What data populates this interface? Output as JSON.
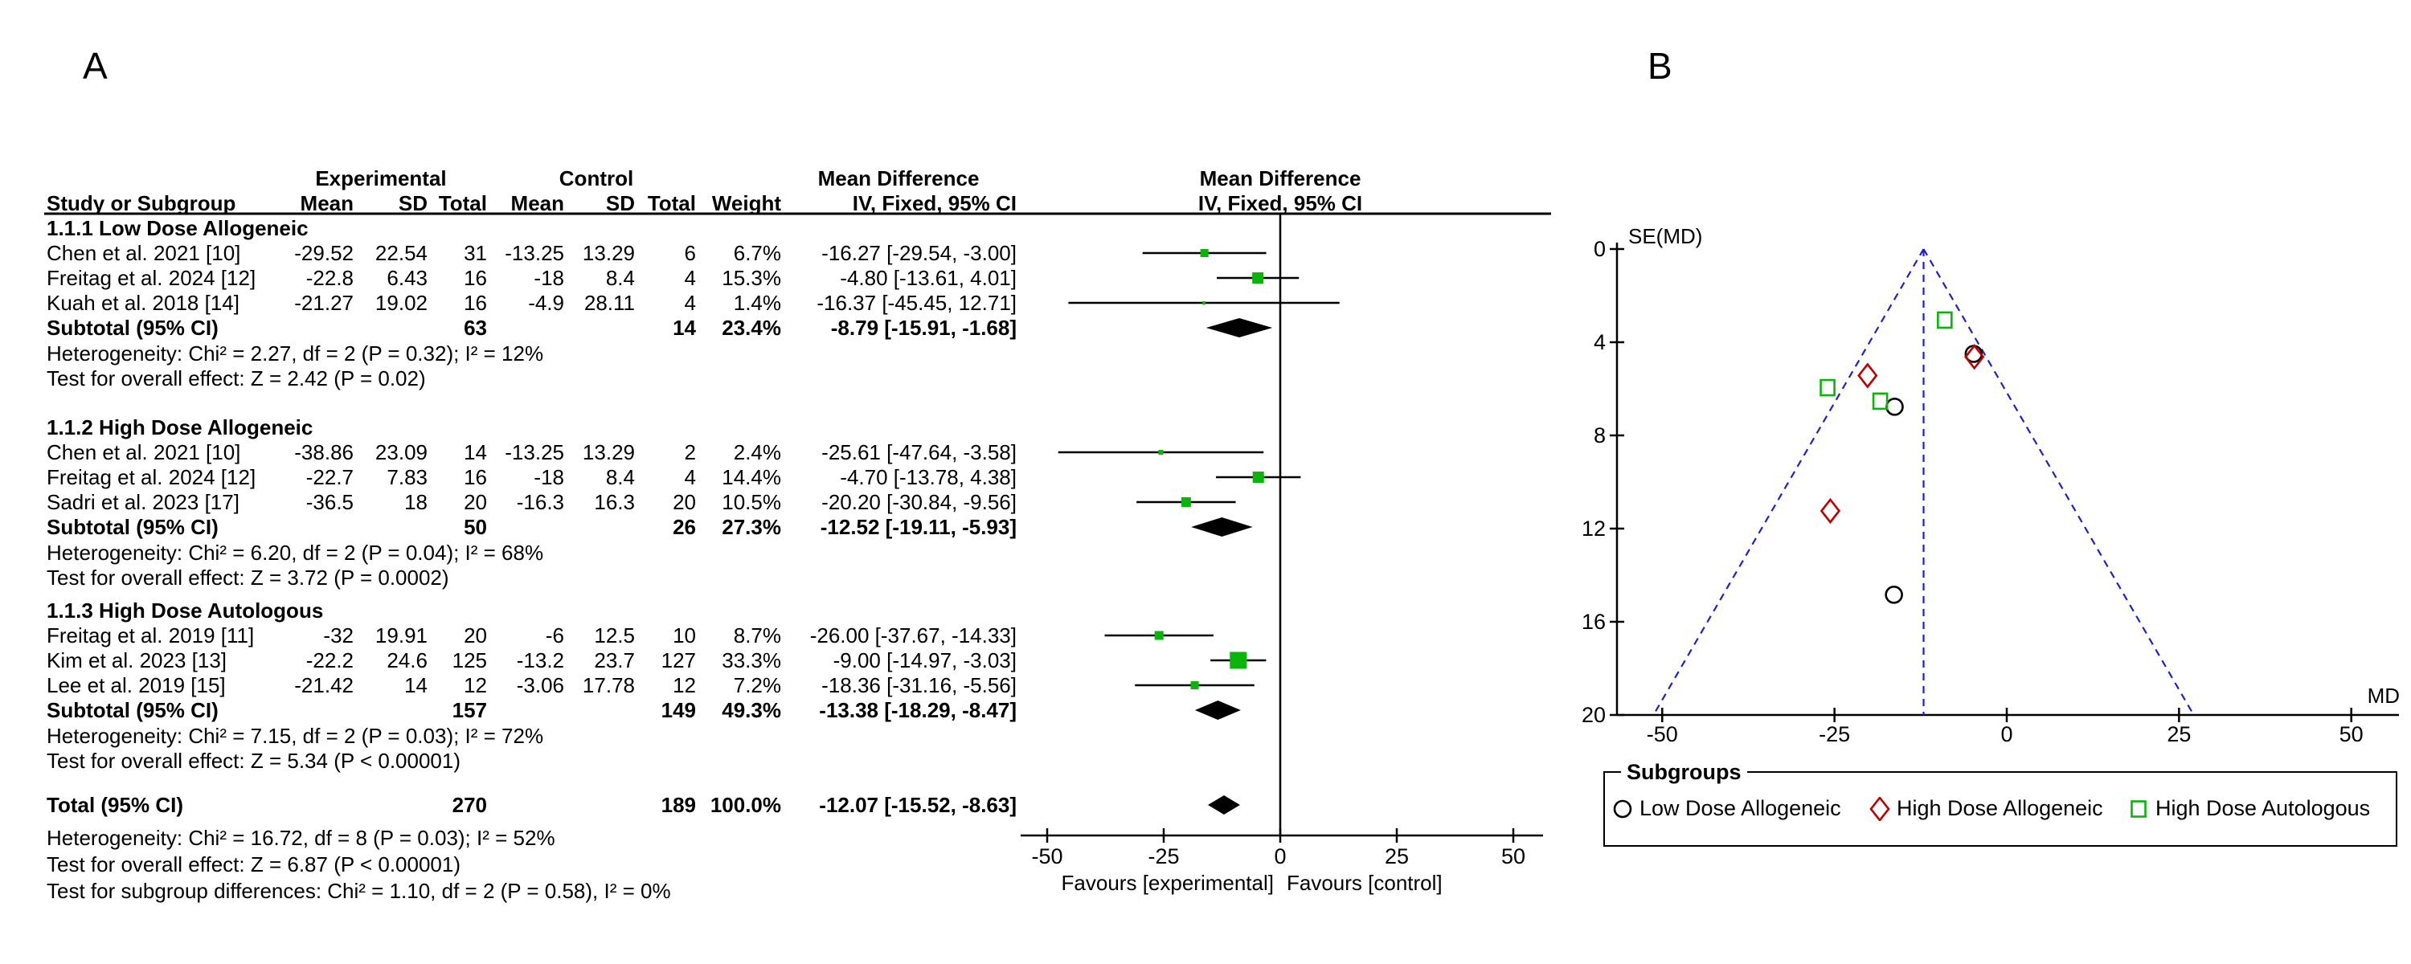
{
  "chart_data": [
    {
      "id": "forest_plot",
      "type": "forest",
      "panel_label": "A",
      "headers": {
        "study": "Study or Subgroup",
        "experimental": "Experimental",
        "control": "Control",
        "mean": "Mean",
        "sd": "SD",
        "total": "Total",
        "weight": "Weight",
        "md_text": "Mean Difference",
        "md_sub": "IV, Fixed, 95% CI",
        "md_plot": "Mean Difference",
        "md_plot_sub": "IV, Fixed, 95% CI"
      },
      "groups": [
        {
          "title": "1.1.1 Low Dose Allogeneic",
          "studies": [
            {
              "name": "Chen et al. 2021 [10]",
              "exp_mean": "-29.52",
              "exp_sd": "22.54",
              "exp_total": "31",
              "ctrl_mean": "-13.25",
              "ctrl_sd": "13.29",
              "ctrl_total": "6",
              "weight": "6.7%",
              "ci_text": "-16.27 [-29.54, -3.00]",
              "md": -16.27,
              "lo": -29.54,
              "hi": -3.0,
              "weight_pct": 6.7
            },
            {
              "name": "Freitag et al. 2024 [12]",
              "exp_mean": "-22.8",
              "exp_sd": "6.43",
              "exp_total": "16",
              "ctrl_mean": "-18",
              "ctrl_sd": "8.4",
              "ctrl_total": "4",
              "weight": "15.3%",
              "ci_text": "-4.80 [-13.61, 4.01]",
              "md": -4.8,
              "lo": -13.61,
              "hi": 4.01,
              "weight_pct": 15.3
            },
            {
              "name": "Kuah et al. 2018 [14]",
              "exp_mean": "-21.27",
              "exp_sd": "19.02",
              "exp_total": "16",
              "ctrl_mean": "-4.9",
              "ctrl_sd": "28.11",
              "ctrl_total": "4",
              "weight": "1.4%",
              "ci_text": "-16.37 [-45.45, 12.71]",
              "md": -16.37,
              "lo": -45.45,
              "hi": 12.71,
              "weight_pct": 1.4
            }
          ],
          "subtotal": {
            "label": "Subtotal (95% CI)",
            "exp_total": "63",
            "ctrl_total": "14",
            "weight": "23.4%",
            "ci_text": "-8.79 [-15.91, -1.68]",
            "md": -8.79,
            "lo": -15.91,
            "hi": -1.68
          },
          "heterogeneity": "Heterogeneity: Chi² = 2.27, df = 2 (P = 0.32); I² = 12%",
          "overall": "Test for overall effect: Z = 2.42 (P = 0.02)"
        },
        {
          "title": "1.1.2 High Dose Allogeneic",
          "studies": [
            {
              "name": "Chen et al. 2021 [10]",
              "exp_mean": "-38.86",
              "exp_sd": "23.09",
              "exp_total": "14",
              "ctrl_mean": "-13.25",
              "ctrl_sd": "13.29",
              "ctrl_total": "2",
              "weight": "2.4%",
              "ci_text": "-25.61 [-47.64, -3.58]",
              "md": -25.61,
              "lo": -47.64,
              "hi": -3.58,
              "weight_pct": 2.4
            },
            {
              "name": "Freitag et al. 2024 [12]",
              "exp_mean": "-22.7",
              "exp_sd": "7.83",
              "exp_total": "16",
              "ctrl_mean": "-18",
              "ctrl_sd": "8.4",
              "ctrl_total": "4",
              "weight": "14.4%",
              "ci_text": "-4.70 [-13.78, 4.38]",
              "md": -4.7,
              "lo": -13.78,
              "hi": 4.38,
              "weight_pct": 14.4
            },
            {
              "name": "Sadri et al. 2023 [17]",
              "exp_mean": "-36.5",
              "exp_sd": "18",
              "exp_total": "20",
              "ctrl_mean": "-16.3",
              "ctrl_sd": "16.3",
              "ctrl_total": "20",
              "weight": "10.5%",
              "ci_text": "-20.20 [-30.84, -9.56]",
              "md": -20.2,
              "lo": -30.84,
              "hi": -9.56,
              "weight_pct": 10.5
            }
          ],
          "subtotal": {
            "label": "Subtotal (95% CI)",
            "exp_total": "50",
            "ctrl_total": "26",
            "weight": "27.3%",
            "ci_text": "-12.52 [-19.11, -5.93]",
            "md": -12.52,
            "lo": -19.11,
            "hi": -5.93
          },
          "heterogeneity": "Heterogeneity: Chi² = 6.20, df = 2 (P = 0.04); I² = 68%",
          "overall": "Test for overall effect: Z = 3.72 (P = 0.0002)"
        },
        {
          "title": "1.1.3 High Dose Autologous",
          "studies": [
            {
              "name": "Freitag et al. 2019 [11]",
              "exp_mean": "-32",
              "exp_sd": "19.91",
              "exp_total": "20",
              "ctrl_mean": "-6",
              "ctrl_sd": "12.5",
              "ctrl_total": "10",
              "weight": "8.7%",
              "ci_text": "-26.00 [-37.67, -14.33]",
              "md": -26.0,
              "lo": -37.67,
              "hi": -14.33,
              "weight_pct": 8.7
            },
            {
              "name": "Kim et al. 2023 [13]",
              "exp_mean": "-22.2",
              "exp_sd": "24.6",
              "exp_total": "125",
              "ctrl_mean": "-13.2",
              "ctrl_sd": "23.7",
              "ctrl_total": "127",
              "weight": "33.3%",
              "ci_text": "-9.00 [-14.97, -3.03]",
              "md": -9.0,
              "lo": -14.97,
              "hi": -3.03,
              "weight_pct": 33.3
            },
            {
              "name": "Lee et al. 2019 [15]",
              "exp_mean": "-21.42",
              "exp_sd": "14",
              "exp_total": "12",
              "ctrl_mean": "-3.06",
              "ctrl_sd": "17.78",
              "ctrl_total": "12",
              "weight": "7.2%",
              "ci_text": "-18.36 [-31.16, -5.56]",
              "md": -18.36,
              "lo": -31.16,
              "hi": -5.56,
              "weight_pct": 7.2
            }
          ],
          "subtotal": {
            "label": "Subtotal (95% CI)",
            "exp_total": "157",
            "ctrl_total": "149",
            "weight": "49.3%",
            "ci_text": "-13.38 [-18.29, -8.47]",
            "md": -13.38,
            "lo": -18.29,
            "hi": -8.47
          },
          "heterogeneity": "Heterogeneity: Chi² = 7.15, df = 2 (P = 0.03); I² = 72%",
          "overall": "Test for overall effect: Z = 5.34 (P < 0.00001)"
        }
      ],
      "total": {
        "label": "Total (95% CI)",
        "exp_total": "270",
        "ctrl_total": "189",
        "weight": "100.0%",
        "ci_text": "-12.07 [-15.52, -8.63]",
        "md": -12.07,
        "lo": -15.52,
        "hi": -8.63
      },
      "total_heterogeneity": "Heterogeneity: Chi² = 16.72, df = 8 (P = 0.03); I² = 52%",
      "total_overall": "Test for overall effect: Z = 6.87 (P < 0.00001)",
      "subgroup_differences": "Test for subgroup differences: Chi² = 1.10, df = 2 (P = 0.58), I² = 0%",
      "x_ticks": [
        -50,
        -25,
        0,
        25,
        50
      ],
      "xlim": [
        -56,
        56
      ],
      "favours_left": "Favours [experimental]",
      "favours_right": "Favours [control]",
      "marker_color": "#0AB40A",
      "line_color": "#000000"
    },
    {
      "id": "funnel_plot",
      "type": "scatter",
      "panel_label": "B",
      "ylabel": "SE(MD)",
      "xlabel": "MD",
      "y_ticks": [
        0,
        4,
        8,
        12,
        16,
        20
      ],
      "x_ticks": [
        -50,
        -25,
        0,
        25,
        50
      ],
      "ylim": [
        0,
        20
      ],
      "xlim": [
        -56,
        56
      ],
      "pooled_md": -12.07,
      "funnel_color": "#2020C8",
      "legend_title": "Subgroups",
      "series": [
        {
          "name": "Low Dose Allogeneic",
          "marker": "circle",
          "color": "#000000",
          "points": [
            {
              "md": -16.27,
              "se": 6.77
            },
            {
              "md": -4.8,
              "se": 4.5
            },
            {
              "md": -16.37,
              "se": 14.84
            }
          ]
        },
        {
          "name": "High Dose Allogeneic",
          "marker": "diamond",
          "color": "#C00000",
          "points": [
            {
              "md": -25.61,
              "se": 11.24
            },
            {
              "md": -4.7,
              "se": 4.63
            },
            {
              "md": -20.2,
              "se": 5.43
            }
          ]
        },
        {
          "name": "High Dose Autologous",
          "marker": "square",
          "color": "#0AB40A",
          "points": [
            {
              "md": -26.0,
              "se": 5.95
            },
            {
              "md": -9.0,
              "se": 3.05
            },
            {
              "md": -18.36,
              "se": 6.53
            }
          ]
        }
      ]
    }
  ]
}
